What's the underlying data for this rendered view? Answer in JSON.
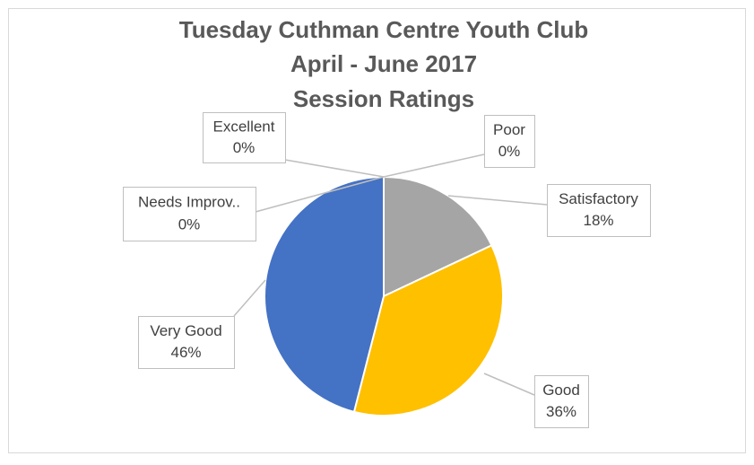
{
  "chart_data": {
    "type": "pie",
    "title": [
      "Tuesday Cuthman Centre Youth Club",
      "April - June 2017",
      "Session Ratings"
    ],
    "categories": [
      "Poor",
      "Satisfactory",
      "Good",
      "Very Good",
      "Needs Improv..",
      "Excellent"
    ],
    "values": [
      0,
      18,
      36,
      46,
      0,
      0
    ],
    "value_labels": [
      "0%",
      "18%",
      "36%",
      "46%",
      "0%",
      "0%"
    ],
    "colors": [
      null,
      "#a5a5a5",
      "#ffc000",
      "#4472c4",
      null,
      null
    ]
  }
}
